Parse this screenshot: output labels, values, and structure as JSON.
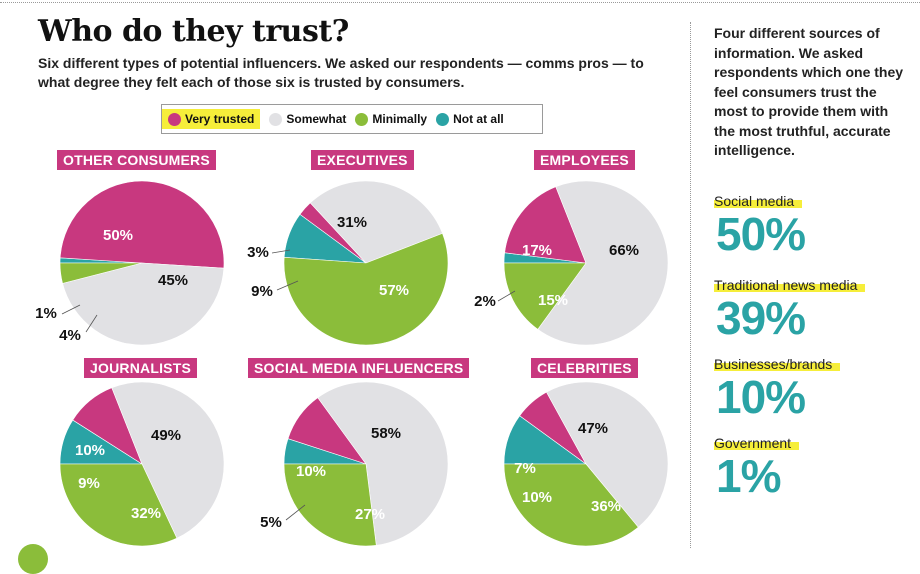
{
  "title": "Who do they trust?",
  "subtitle": "Six different types of potential influencers. We asked our respondents — comms pros — to what degree they felt each of those six is trusted by consumers.",
  "legend": [
    {
      "label": "Very trusted",
      "color": "#c8387f",
      "highlight": true
    },
    {
      "label": "Somewhat",
      "color": "#e1e1e4",
      "highlight": false
    },
    {
      "label": "Minimally",
      "color": "#8bbd3a",
      "highlight": false
    },
    {
      "label": "Not at all",
      "color": "#2aa3a5",
      "highlight": false
    }
  ],
  "colors": {
    "very": "#c8387f",
    "somewhat": "#e1e1e4",
    "minimally": "#8bbd3a",
    "notatall": "#2aa3a5",
    "accent": "#2aa3a5",
    "highlight": "#f6ee3a"
  },
  "sidebar": {
    "intro": "Four different sources of information. We asked respondents which one they feel consumers trust the most to provide them with the most truthful, accurate intelligence.",
    "sources": [
      {
        "label": "Social media",
        "value": "50%"
      },
      {
        "label": "Traditional news media",
        "value": "39%"
      },
      {
        "label": "Businesses/brands",
        "value": "10%"
      },
      {
        "label": "Government",
        "value": "1%"
      }
    ]
  },
  "chart_data": [
    {
      "type": "pie",
      "title": "OTHER CONSUMERS",
      "slices": [
        {
          "category": "Very trusted",
          "value": 50,
          "label": "50%"
        },
        {
          "category": "Somewhat",
          "value": 45,
          "label": "45%"
        },
        {
          "category": "Minimally",
          "value": 4,
          "label": "4%"
        },
        {
          "category": "Not at all",
          "value": 1,
          "label": "1%"
        }
      ]
    },
    {
      "type": "pie",
      "title": "EXECUTIVES",
      "slices": [
        {
          "category": "Very trusted",
          "value": 3,
          "label": "3%"
        },
        {
          "category": "Somewhat",
          "value": 31,
          "label": "31%"
        },
        {
          "category": "Minimally",
          "value": 57,
          "label": "57%"
        },
        {
          "category": "Not at all",
          "value": 9,
          "label": "9%"
        }
      ]
    },
    {
      "type": "pie",
      "title": "EMPLOYEES",
      "slices": [
        {
          "category": "Very trusted",
          "value": 17,
          "label": "17%"
        },
        {
          "category": "Somewhat",
          "value": 66,
          "label": "66%"
        },
        {
          "category": "Minimally",
          "value": 15,
          "label": "15%"
        },
        {
          "category": "Not at all",
          "value": 2,
          "label": "2%"
        }
      ]
    },
    {
      "type": "pie",
      "title": "JOURNALISTS",
      "slices": [
        {
          "category": "Very trusted",
          "value": 10,
          "label": "10%"
        },
        {
          "category": "Somewhat",
          "value": 49,
          "label": "49%"
        },
        {
          "category": "Minimally",
          "value": 32,
          "label": "32%"
        },
        {
          "category": "Not at all",
          "value": 9,
          "label": "9%"
        }
      ]
    },
    {
      "type": "pie",
      "title": "SOCIAL MEDIA INFLUENCERS",
      "slices": [
        {
          "category": "Very trusted",
          "value": 10,
          "label": "10%"
        },
        {
          "category": "Somewhat",
          "value": 58,
          "label": "58%"
        },
        {
          "category": "Minimally",
          "value": 27,
          "label": "27%"
        },
        {
          "category": "Not at all",
          "value": 5,
          "label": "5%"
        }
      ]
    },
    {
      "type": "pie",
      "title": "CELEBRITIES",
      "slices": [
        {
          "category": "Very trusted",
          "value": 7,
          "label": "7%"
        },
        {
          "category": "Somewhat",
          "value": 47,
          "label": "47%"
        },
        {
          "category": "Minimally",
          "value": 36,
          "label": "36%"
        },
        {
          "category": "Not at all",
          "value": 10,
          "label": "10%"
        }
      ]
    }
  ]
}
